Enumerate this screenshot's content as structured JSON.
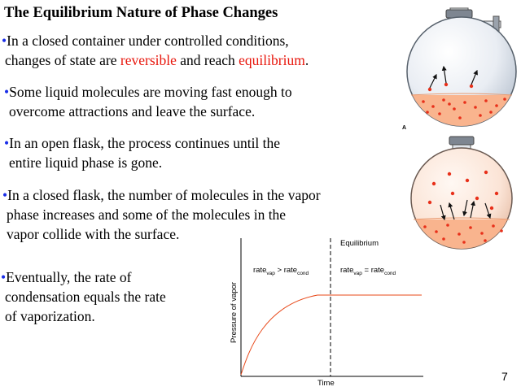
{
  "title": "The Equilibrium Nature of Phase Changes",
  "bullet_marker": "•",
  "bullets": [
    {
      "line1": "In a closed container under controlled conditions,",
      "line2_a": "changes of state are ",
      "line2_red1": "reversible",
      "line2_b": " and reach ",
      "line2_red2": "equilibrium",
      "line2_c": "."
    },
    {
      "line1": "Some liquid molecules are moving fast enough to",
      "line2": "overcome attractions and leave the surface."
    },
    {
      "line1": "In an open flask, the process continues until the",
      "line2": "entire liquid phase is gone."
    },
    {
      "line1": "In a closed flask, the number of molecules in the vapor",
      "line2": "phase increases  and some of the molecules in the",
      "line3": "vapor collide with the surface."
    },
    {
      "line1": "Eventually, the rate of",
      "line2": "condensation equals the rate",
      "line3": "of vaporization."
    }
  ],
  "figure_label": "A",
  "page_number": "7",
  "graph": {
    "equilibrium_label": "Equilibrium",
    "ylabel": "Pressure of vapor",
    "xlabel": "Time",
    "left_annot": {
      "rate": "rate",
      "vap": "vap",
      "gt": " > ",
      "cond": "cond"
    },
    "right_annot": {
      "rate": "rate",
      "vap": "vap",
      "eq": " = ",
      "cond": "cond"
    },
    "curve_color": "#e8491a"
  },
  "colors": {
    "accent_red": "#e8160c",
    "bullet_blue": "#1a2ee8",
    "liquid_orange": "#f9b48e",
    "molecule_red": "#e8301a"
  }
}
